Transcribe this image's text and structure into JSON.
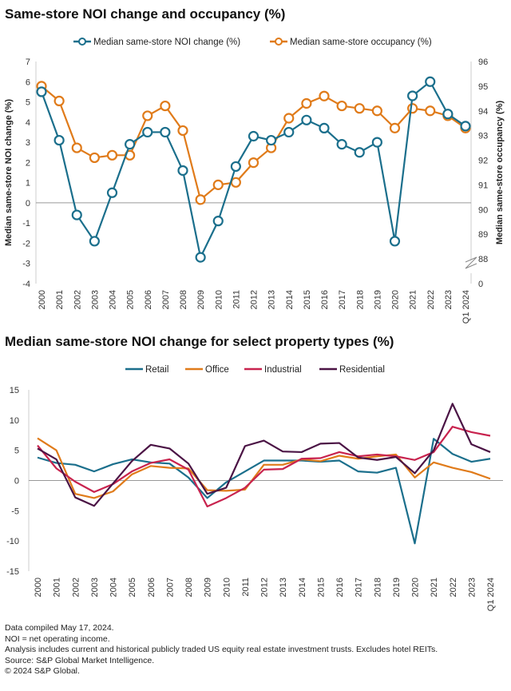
{
  "chart_data": [
    {
      "type": "line",
      "title": "Same-store NOI change and occupancy (%)",
      "categories": [
        "2000",
        "2001",
        "2002",
        "2003",
        "2004",
        "2005",
        "2006",
        "2007",
        "2008",
        "2009",
        "2010",
        "2011",
        "2012",
        "2013",
        "2014",
        "2015",
        "2016",
        "2017",
        "2018",
        "2019",
        "2020",
        "2021",
        "2022",
        "2023",
        "Q1 2024"
      ],
      "ylabel": "Median same-store NOI change (%)",
      "ylabel_right": "Median same-store occupancy (%)",
      "ylim": [
        -4,
        7
      ],
      "yticks": [
        "7",
        "6",
        "5",
        "4",
        "3",
        "2",
        "1",
        "0",
        "-1",
        "-2",
        "-3",
        "-4"
      ],
      "ylim_right": [
        88,
        96
      ],
      "yticks_right": [
        "96",
        "95",
        "94",
        "93",
        "92",
        "91",
        "90",
        "89",
        "88",
        "0"
      ],
      "axis_break_right": true,
      "legend_position": "top",
      "markers": "hollow circles",
      "series": [
        {
          "name": "Median same-store NOI change (%)",
          "axis": "left",
          "color": "#1B6F8C",
          "values": [
            5.5,
            3.1,
            -0.6,
            -1.9,
            0.5,
            2.9,
            3.5,
            3.5,
            1.6,
            -2.7,
            -0.9,
            1.8,
            3.3,
            3.1,
            3.5,
            4.1,
            3.7,
            2.9,
            2.5,
            3.0,
            -1.9,
            5.3,
            6.0,
            4.4,
            3.8
          ]
        },
        {
          "name": "Median same-store occupancy (%)",
          "axis": "right",
          "color": "#E07B1A",
          "values": [
            95.0,
            94.4,
            92.5,
            92.1,
            92.2,
            92.2,
            93.8,
            94.2,
            93.2,
            90.4,
            91.0,
            91.1,
            91.9,
            92.5,
            93.7,
            94.3,
            94.6,
            94.2,
            94.1,
            94.0,
            93.3,
            94.1,
            94.0,
            93.8,
            93.3
          ]
        }
      ]
    },
    {
      "type": "line",
      "title": "Median same-store NOI change for select property types (%)",
      "categories": [
        "2000",
        "2001",
        "2002",
        "2003",
        "2004",
        "2005",
        "2006",
        "2007",
        "2008",
        "2009",
        "2010",
        "2011",
        "2012",
        "2013",
        "2014",
        "2015",
        "2016",
        "2017",
        "2018",
        "2019",
        "2020",
        "2021",
        "2022",
        "2023",
        "Q1 2024"
      ],
      "ylim": [
        -15,
        15
      ],
      "yticks": [
        "15",
        "10",
        "5",
        "0",
        "-5",
        "-10",
        "-15"
      ],
      "legend_position": "top",
      "series": [
        {
          "name": "Retail",
          "color": "#1B6F8C",
          "values": [
            3.8,
            2.9,
            2.6,
            1.5,
            2.7,
            3.5,
            3.0,
            2.8,
            0.5,
            -2.9,
            -0.3,
            1.5,
            3.3,
            3.3,
            3.3,
            3.1,
            3.3,
            1.5,
            1.3,
            2.1,
            -10.4,
            6.9,
            4.4,
            3.1,
            3.6
          ]
        },
        {
          "name": "Office",
          "color": "#E07B1A",
          "values": [
            7.0,
            5.0,
            -2.2,
            -2.9,
            -1.8,
            1.0,
            2.4,
            2.1,
            2.0,
            -1.6,
            -1.7,
            -1.5,
            2.6,
            2.6,
            3.5,
            3.2,
            4.1,
            3.6,
            4.0,
            4.3,
            0.5,
            3.0,
            2.1,
            1.4,
            0.3
          ]
        },
        {
          "name": "Industrial",
          "color": "#C8234E",
          "values": [
            5.8,
            2.0,
            -0.2,
            -1.9,
            -0.6,
            1.5,
            2.9,
            3.5,
            1.8,
            -4.3,
            -2.9,
            -1.2,
            1.8,
            1.9,
            3.6,
            3.7,
            4.7,
            4.0,
            4.3,
            4.0,
            3.4,
            4.7,
            8.9,
            8.0,
            7.4
          ]
        },
        {
          "name": "Residential",
          "color": "#4B1445",
          "values": [
            5.3,
            3.5,
            -2.8,
            -4.2,
            -0.5,
            3.2,
            5.9,
            5.3,
            2.8,
            -2.2,
            -1.2,
            5.7,
            6.6,
            4.8,
            4.7,
            6.1,
            6.2,
            3.8,
            3.4,
            3.9,
            1.2,
            5.0,
            12.7,
            6.0,
            4.7
          ]
        }
      ]
    }
  ],
  "notes": [
    "Data compiled May 17, 2024.",
    "NOI = net operating income.",
    "Analysis includes current and historical publicly traded US equity real estate investment trusts. Excludes hotel REITs.",
    "Source: S&P Global Market Intelligence.",
    "© 2024 S&P Global."
  ]
}
